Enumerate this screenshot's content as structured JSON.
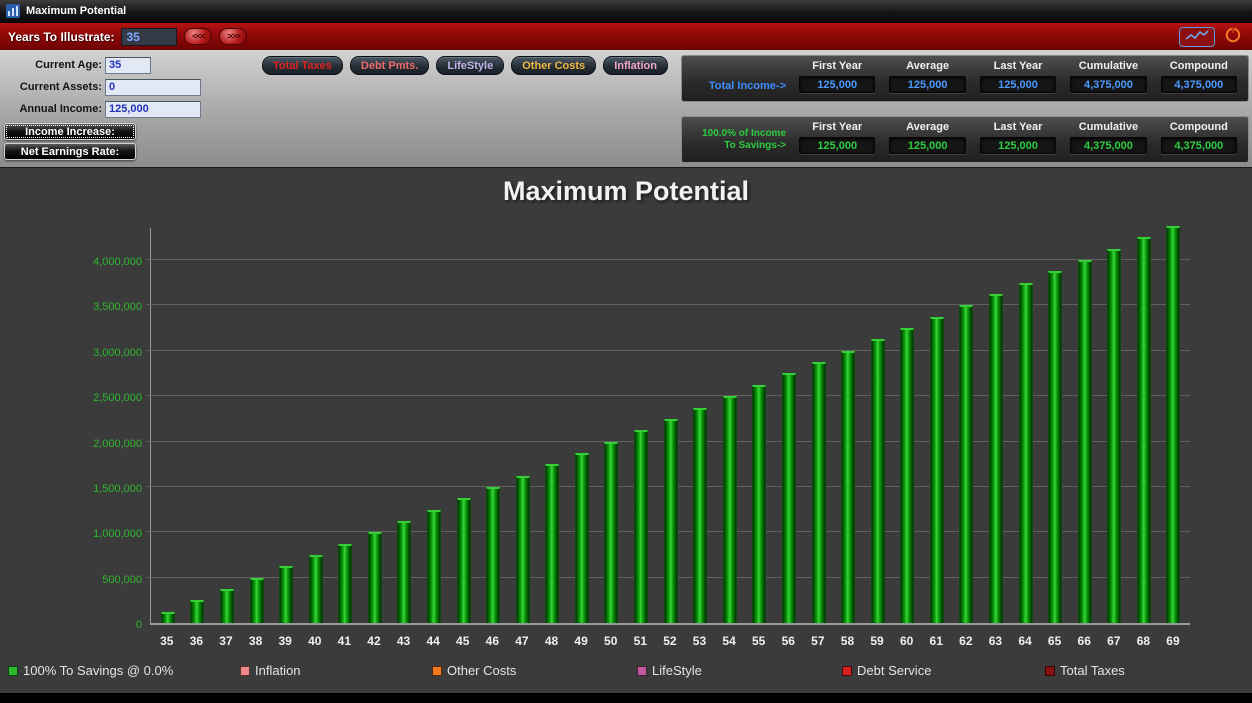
{
  "window": {
    "title": "Maximum Potential"
  },
  "toolbar": {
    "years_label": "Years To Illustrate:",
    "years_value": "35",
    "back_glyph": "<<<",
    "forward_glyph": ">>>"
  },
  "form": {
    "current_age": {
      "label": "Current Age:",
      "value": "35"
    },
    "current_assets": {
      "label": "Current Assets:",
      "value": "0"
    },
    "annual_income": {
      "label": "Annual Income:",
      "value": "125,000"
    },
    "income_increase_button": "Income Increase:",
    "net_earnings_button": "Net Earnings Rate:"
  },
  "toggles": [
    {
      "label": "Total Taxes",
      "color": "#e02020"
    },
    {
      "label": "Debt Pmts.",
      "color": "#ef6a6a"
    },
    {
      "label": "LifeStyle",
      "color": "#c3b2ea"
    },
    {
      "label": "Other Costs",
      "color": "#f0b840"
    },
    {
      "label": "Inflation",
      "color": "#f2a6c6"
    }
  ],
  "income_table": {
    "row_label": "Total Income->",
    "label_color": "#3f8fff",
    "value_color": "#4b9bff",
    "headers": [
      "First Year",
      "Average",
      "Last Year",
      "Cumulative",
      "Compound"
    ],
    "values": [
      "125,000",
      "125,000",
      "125,000",
      "4,375,000",
      "4,375,000"
    ]
  },
  "savings_table": {
    "row_label_line1": "100.0% of Income",
    "row_label_line2": "To Savings->",
    "label_color": "#2ecc40",
    "value_color": "#2ecc40",
    "headers": [
      "First Year",
      "Average",
      "Last Year",
      "Cumulative",
      "Compound"
    ],
    "values": [
      "125,000",
      "125,000",
      "125,000",
      "4,375,000",
      "4,375,000"
    ]
  },
  "chart_data": {
    "type": "bar",
    "title": "Maximum Potential",
    "xlabel": "",
    "ylabel": "",
    "series_name": "100% To Savings @ 0.0%",
    "bar_color": "#0a9c0a",
    "grid": true,
    "legend_position": "bottom",
    "ylim": [
      0,
      4375000
    ],
    "categories": [
      35,
      36,
      37,
      38,
      39,
      40,
      41,
      42,
      43,
      44,
      45,
      46,
      47,
      48,
      49,
      50,
      51,
      52,
      53,
      54,
      55,
      56,
      57,
      58,
      59,
      60,
      61,
      62,
      63,
      64,
      65,
      66,
      67,
      68,
      69
    ],
    "values": [
      125000,
      250000,
      375000,
      500000,
      625000,
      750000,
      875000,
      1000000,
      1125000,
      1250000,
      1375000,
      1500000,
      1625000,
      1750000,
      1875000,
      2000000,
      2125000,
      2250000,
      2375000,
      2500000,
      2625000,
      2750000,
      2875000,
      3000000,
      3125000,
      3250000,
      3375000,
      3500000,
      3625000,
      3750000,
      3875000,
      4000000,
      4125000,
      4250000,
      4375000
    ],
    "yticks": [
      {
        "value": 0,
        "label": "0"
      },
      {
        "value": 500000,
        "label": "500,000"
      },
      {
        "value": 1000000,
        "label": "1,000,000"
      },
      {
        "value": 1500000,
        "label": "1,500,000"
      },
      {
        "value": 2000000,
        "label": "2,000,000"
      },
      {
        "value": 2500000,
        "label": "2,500,000"
      },
      {
        "value": 3000000,
        "label": "3,000,000"
      },
      {
        "value": 3500000,
        "label": "3,500,000"
      },
      {
        "value": 4000000,
        "label": "4,000,000"
      }
    ]
  },
  "legend": [
    {
      "label": "100% To Savings @ 0.0%",
      "color": "#2db82d"
    },
    {
      "label": "Inflation",
      "color": "#f08a8a"
    },
    {
      "label": "Other Costs",
      "color": "#f07820"
    },
    {
      "label": "LifeStyle",
      "color": "#c05a9a"
    },
    {
      "label": "Debt Service",
      "color": "#d42020"
    },
    {
      "label": "Total Taxes",
      "color": "#8a0f0f"
    }
  ]
}
